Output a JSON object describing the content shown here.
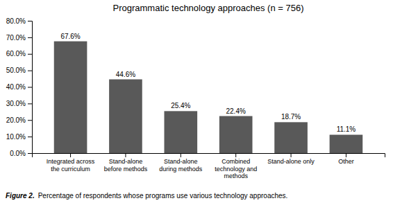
{
  "chart_data": {
    "type": "bar",
    "title": "Programmatic technology approaches (n = 756)",
    "categories": [
      "Integrated across\nthe curriculum",
      "Stand-alone\nbefore methods",
      "Stand-alone\nduring methods",
      "Combined\ntechnology and\nmethods",
      "Stand-alone only",
      "Other"
    ],
    "values": [
      67.6,
      44.6,
      25.4,
      22.4,
      18.7,
      11.1
    ],
    "value_labels": [
      "67.6%",
      "44.6%",
      "25.4%",
      "22.4%",
      "18.7%",
      "11.1%"
    ],
    "data_labels": true,
    "color": "#595959",
    "ylim": [
      0,
      80
    ],
    "yticks": [
      {
        "value": 0,
        "label": "0.0%"
      },
      {
        "value": 10,
        "label": "10.0%"
      },
      {
        "value": 20,
        "label": "20.0%"
      },
      {
        "value": 30,
        "label": "30.0%"
      },
      {
        "value": 40,
        "label": "40.0%"
      },
      {
        "value": 50,
        "label": "50.0%"
      },
      {
        "value": 60,
        "label": "60.0%"
      },
      {
        "value": 70,
        "label": "70.0%"
      },
      {
        "value": 80,
        "label": "80.0%"
      }
    ],
    "grid": false,
    "annotations": [
      "Figure 2.",
      "Percentage of respondents whose programs use various technology approaches."
    ]
  }
}
